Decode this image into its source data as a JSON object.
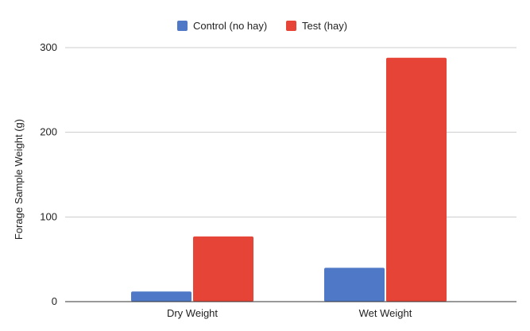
{
  "chart_data": {
    "type": "bar",
    "title": "",
    "xlabel": "",
    "ylabel": "Forage Sample Weight (g)",
    "ylim": [
      0,
      300
    ],
    "yticks": [
      0,
      100,
      200,
      300
    ],
    "grid": true,
    "legend_position": "top",
    "categories": [
      "Dry Weight",
      "Wet Weight"
    ],
    "series": [
      {
        "name": "Control (no hay)",
        "color": "#4f79c6",
        "values": [
          12,
          40
        ]
      },
      {
        "name": "Test (hay)",
        "color": "#e64436",
        "values": [
          77,
          288
        ]
      }
    ]
  }
}
